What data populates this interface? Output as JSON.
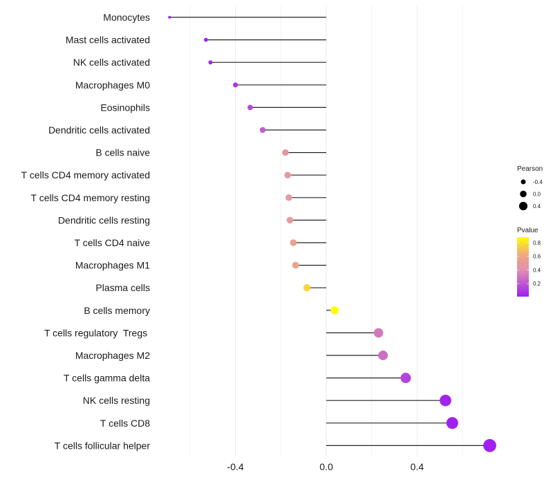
{
  "chart_data": {
    "type": "lollipop",
    "title": "",
    "xlabel": "",
    "ylabel": "",
    "xlim": [
      -0.76,
      0.76
    ],
    "x_ticks": [
      -0.4,
      0.0,
      0.4
    ],
    "x_tick_labels": [
      "-0.4",
      "0.0",
      "0.4"
    ],
    "x_minor_gridlines": [
      -0.6,
      -0.2,
      0.2,
      0.6
    ],
    "grid": true,
    "categories": [
      "Monocytes",
      "Mast cells activated",
      "NK cells activated",
      "Macrophages M0",
      "Eosinophils",
      "Dendritic cells activated",
      "B cells naive",
      "T cells CD4 memory activated",
      "T cells CD4 memory resting",
      "Dendritic cells resting",
      "T cells CD4 naive",
      "Macrophages M1",
      "Plasma cells",
      "B cells memory",
      "T cells regulatory  Tregs ",
      "Macrophages M2",
      "T cells gamma delta",
      "NK cells resting",
      "T cells CD8",
      "T cells follicular helper"
    ],
    "series": [
      {
        "name": "Pearson",
        "values": [
          -0.69,
          -0.53,
          -0.51,
          -0.4,
          -0.335,
          -0.28,
          -0.18,
          -0.17,
          -0.165,
          -0.16,
          -0.145,
          -0.135,
          -0.085,
          0.037,
          0.23,
          0.25,
          0.35,
          0.525,
          0.555,
          0.72
        ]
      },
      {
        "name": "Pvalue",
        "values": [
          0.02,
          0.02,
          0.03,
          0.08,
          0.15,
          0.22,
          0.45,
          0.47,
          0.48,
          0.49,
          0.55,
          0.57,
          0.75,
          0.88,
          0.32,
          0.28,
          0.13,
          0.02,
          0.01,
          0.01
        ]
      }
    ],
    "legend": {
      "placement": "right",
      "size": {
        "title": "Pearson",
        "breaks": [
          -0.4,
          0.0,
          0.4
        ],
        "labels": [
          "-0.4",
          "0.0",
          "0.4"
        ]
      },
      "color": {
        "title": "Pvalue",
        "range": [
          0.01,
          0.88
        ],
        "breaks": [
          0.2,
          0.4,
          0.6,
          0.8
        ],
        "labels": [
          "0.2",
          "0.4",
          "0.6",
          "0.8"
        ],
        "low_color": "#A020F0",
        "mid_color": "#E8A0A0",
        "high_color": "#FFFF00"
      }
    }
  }
}
